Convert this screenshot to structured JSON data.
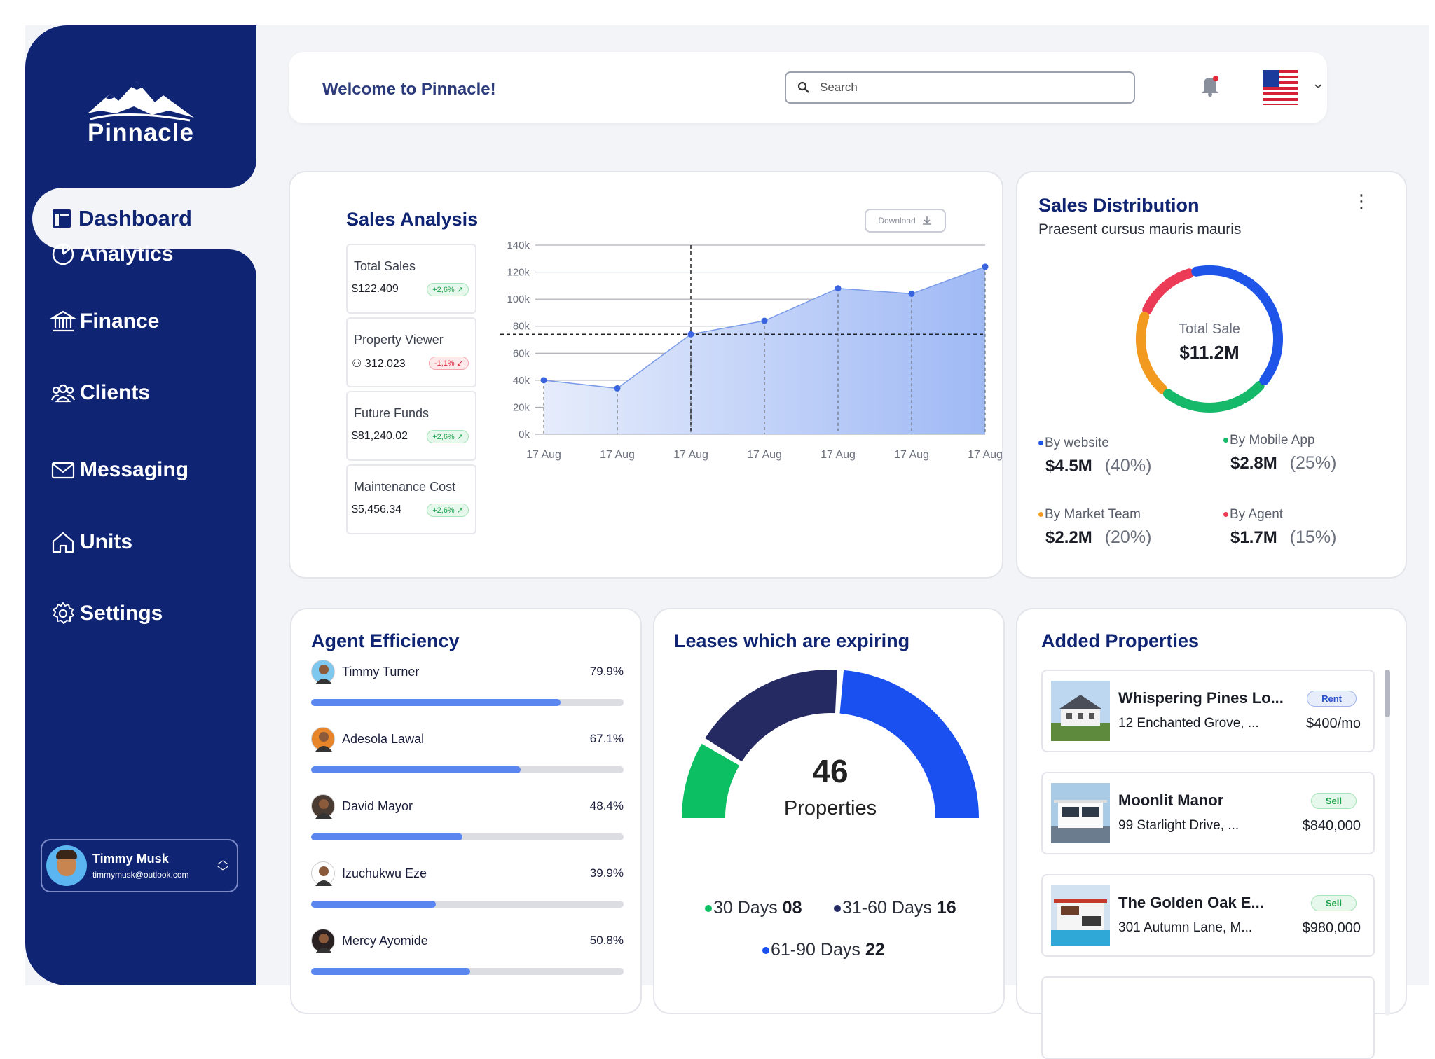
{
  "brand": {
    "name": "Pinnacle"
  },
  "sidebar": {
    "items": [
      {
        "label": "Dashboard",
        "icon": "dashboard-icon",
        "active": true
      },
      {
        "label": "Analytics",
        "icon": "pie-chart-icon"
      },
      {
        "label": "Finance",
        "icon": "bank-icon"
      },
      {
        "label": "Clients",
        "icon": "users-icon"
      },
      {
        "label": "Messaging",
        "icon": "mail-icon"
      },
      {
        "label": "Units",
        "icon": "home-icon"
      },
      {
        "label": "Settings",
        "icon": "gear-icon"
      }
    ],
    "user": {
      "name": "Timmy Musk",
      "email": "timmymusk@outlook.com"
    }
  },
  "header": {
    "welcome": "Welcome to Pinnacle!",
    "search_placeholder": "Search"
  },
  "sales": {
    "title": "Sales Analysis",
    "download_label": "Download",
    "stats": [
      {
        "label": "Total Sales",
        "value": "$122.409",
        "change": "+2,6%",
        "direction": "up"
      },
      {
        "label": "Property Viewer",
        "value": "312.023",
        "change": "-1,1%",
        "direction": "down"
      },
      {
        "label": "Future Funds",
        "value": "$81,240.02",
        "change": "+2,6%",
        "direction": "up"
      },
      {
        "label": "Maintenance Cost",
        "value": "$5,456.34",
        "change": "+2,6%",
        "direction": "up"
      }
    ]
  },
  "chart_data": {
    "type": "area",
    "title": "Sales Analysis",
    "x": [
      "17 Aug",
      "17 Aug",
      "17 Aug",
      "17 Aug",
      "17 Aug",
      "17 Aug",
      "17 Aug"
    ],
    "y_ticks": [
      "0k",
      "20k",
      "40k",
      "60k",
      "80k",
      "100k",
      "120k",
      "140k"
    ],
    "values": [
      40000,
      34000,
      74000,
      84000,
      108000,
      104000,
      124000
    ],
    "ylim": [
      0,
      140000
    ],
    "highlight_index": 2,
    "grid": true,
    "color": "#3a63e0"
  },
  "distribution": {
    "title": "Sales Distribution",
    "subtitle": "Praesent cursus mauris mauris",
    "center_label": "Total Sale",
    "center_value": "$11.2M",
    "items": [
      {
        "label": "By website",
        "amount": "$4.5M",
        "pct": "(40%)",
        "color": "#1e54e8",
        "share": 40
      },
      {
        "label": "By Mobile App",
        "amount": "$2.8M",
        "pct": "(25%)",
        "color": "#16b86a",
        "share": 25
      },
      {
        "label": "By Market Team",
        "amount": "$2.2M",
        "pct": "(20%)",
        "color": "#f29a1f",
        "share": 20
      },
      {
        "label": "By Agent",
        "amount": "$1.7M",
        "pct": "(15%)",
        "color": "#ec3b57",
        "share": 15
      }
    ]
  },
  "agents": {
    "title": "Agent Efficiency",
    "rows": [
      {
        "name": "Timmy Turner",
        "pct": "79.9%",
        "value": 0.799
      },
      {
        "name": "Adesola Lawal",
        "pct": "67.1%",
        "value": 0.671
      },
      {
        "name": "David Mayor",
        "pct": "48.4%",
        "value": 0.484
      },
      {
        "name": "Izuchukwu Eze",
        "pct": "39.9%",
        "value": 0.399
      },
      {
        "name": "Mercy Ayomide",
        "pct": "50.8%",
        "value": 0.508
      }
    ]
  },
  "leases": {
    "title": "Leases which are expiring",
    "count": "46",
    "count_label": "Properties",
    "segments": [
      {
        "label": "30 Days",
        "value": "08",
        "color": "#0dbf63"
      },
      {
        "label": "31-60 Days",
        "value": "16",
        "color": "#262a63"
      },
      {
        "label": "61-90 Days",
        "value": "22",
        "color": "#1a4ff0"
      }
    ]
  },
  "properties": {
    "title": "Added Properties",
    "items": [
      {
        "name": "Whispering Pines Lo...",
        "address": "12 Enchanted Grove, ...",
        "price": "$400/mo",
        "tag": "Rent"
      },
      {
        "name": "Moonlit Manor",
        "address": "99 Starlight Drive, ...",
        "price": "$840,000",
        "tag": "Sell"
      },
      {
        "name": "The Golden Oak E...",
        "address": "301 Autumn Lane, M...",
        "price": "$980,000",
        "tag": "Sell"
      }
    ]
  }
}
